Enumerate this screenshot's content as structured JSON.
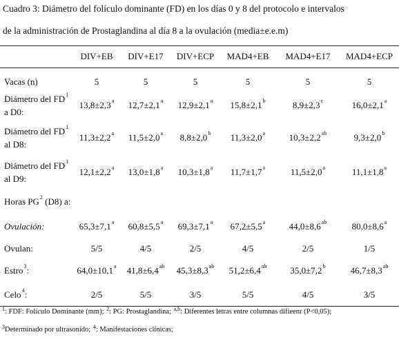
{
  "caption": {
    "line1": "Cuadro 3: Diámetro del folículo dominante (FD) en los días 0 y 8 del protocolo e intervalos",
    "line2": "de la administración  de Prostaglandina  al día 8 a la ovulación (media±e.e.m)"
  },
  "columns": [
    "DIV+EB",
    "DIV+E17",
    "DIV+ECP",
    "MAD4+EB",
    "MAD4+E17",
    "MAD4+ECP"
  ],
  "rows": [
    {
      "label": [
        "Vacas (n)"
      ],
      "cells": [
        {
          "v": "5",
          "s": ""
        },
        {
          "v": "5",
          "s": ""
        },
        {
          "v": "5",
          "s": ""
        },
        {
          "v": "5",
          "s": ""
        },
        {
          "v": "5",
          "s": ""
        },
        {
          "v": "5",
          "s": ""
        }
      ]
    },
    {
      "label": [
        "Diámetro del FD",
        "a D0:"
      ],
      "label_sup": "1",
      "cells": [
        {
          "v": "13,8±2,3",
          "s": "a"
        },
        {
          "v": "12,7±2,1",
          "s": "a"
        },
        {
          "v": "12,9±2,1",
          "s": "a"
        },
        {
          "v": "15,8±2,1",
          "s": "b"
        },
        {
          "v": "8,9±2,3",
          "s": "c"
        },
        {
          "v": "16,0±2,1",
          "s": "a"
        }
      ]
    },
    {
      "label": [
        "Diámetro del FD",
        "al D8:"
      ],
      "label_sup": "1",
      "cells": [
        {
          "v": "11,3±2,2",
          "s": "a"
        },
        {
          "v": "11,5±2,0",
          "s": "a"
        },
        {
          "v": "8,8±2,0",
          "s": "b"
        },
        {
          "v": "11,3±2,0",
          "s": "a"
        },
        {
          "v": "10,3±2,2",
          "s": "ab"
        },
        {
          "v": "9,3±2,0",
          "s": "b"
        }
      ]
    },
    {
      "label": [
        "Diámetro del FD",
        "al D9:"
      ],
      "label_sup": "1",
      "cells": [
        {
          "v": "12,1±2,2",
          "s": "a"
        },
        {
          "v": "13,0±1,8",
          "s": "a"
        },
        {
          "v": "10,3±1,8",
          "s": "a"
        },
        {
          "v": "11,7±1,7",
          "s": "a"
        },
        {
          "v": "11,5±2,0",
          "s": "a"
        },
        {
          "v": "11,1±1,8",
          "s": "a"
        }
      ]
    },
    {
      "label": [
        "Horas PG",
        " (D8) a:"
      ],
      "label_sup": "2",
      "cells": []
    },
    {
      "label": [
        "Ovulación:"
      ],
      "italic": true,
      "cells": [
        {
          "v": "65,3±7,1",
          "s": "a"
        },
        {
          "v": "60,8±5,5",
          "s": "a"
        },
        {
          "v": "69,3±7,1",
          "s": "a"
        },
        {
          "v": "67,2±5,5",
          "s": "a"
        },
        {
          "v": "44,0±8,6",
          "s": "ab"
        },
        {
          "v": "80,0±8,6",
          "s": "a"
        }
      ]
    },
    {
      "label": [
        "Ovulan:"
      ],
      "cells": [
        {
          "v": "5/5",
          "s": ""
        },
        {
          "v": "4/5",
          "s": ""
        },
        {
          "v": "2/5",
          "s": ""
        },
        {
          "v": "4/5",
          "s": ""
        },
        {
          "v": "2/5",
          "s": ""
        },
        {
          "v": "1/5",
          "s": ""
        }
      ]
    },
    {
      "label": [
        "Estro",
        ":"
      ],
      "label_sup": "3",
      "cells": [
        {
          "v": "64,0±10,1",
          "s": "a"
        },
        {
          "v": "41,8±6,4",
          "s": "ab"
        },
        {
          "v": "45,3±8,3",
          "s": "ab"
        },
        {
          "v": "51,2±6,4",
          "s": "ab"
        },
        {
          "v": "35,0±7,2",
          "s": "b"
        },
        {
          "v": "46,7±8,3",
          "s": "ab"
        }
      ]
    },
    {
      "label": [
        "Celo",
        ":"
      ],
      "label_sup": "4",
      "cells": [
        {
          "v": "2/5",
          "s": ""
        },
        {
          "v": "5/5",
          "s": ""
        },
        {
          "v": "3/5",
          "s": ""
        },
        {
          "v": "5/5",
          "s": ""
        },
        {
          "v": "4/5",
          "s": ""
        },
        {
          "v": "3/5",
          "s": ""
        }
      ]
    }
  ],
  "footnotes": {
    "line1_prefix_sup": "1",
    "line1": ": FDF: Folículo Dominante (mm); ",
    "line1_sup2": "2",
    "line1b": ": PG: Prostaglandina; ",
    "line1_sup3": "a,b",
    "line1c": ": Diferentes letras entre columnas difieenr (P<0,05);",
    "line2_sup": "3",
    "line2": "Determinado por ultrasonido; ",
    "line2_sup2": "4",
    "line2b": ": Manifestaciones clínicas;"
  }
}
